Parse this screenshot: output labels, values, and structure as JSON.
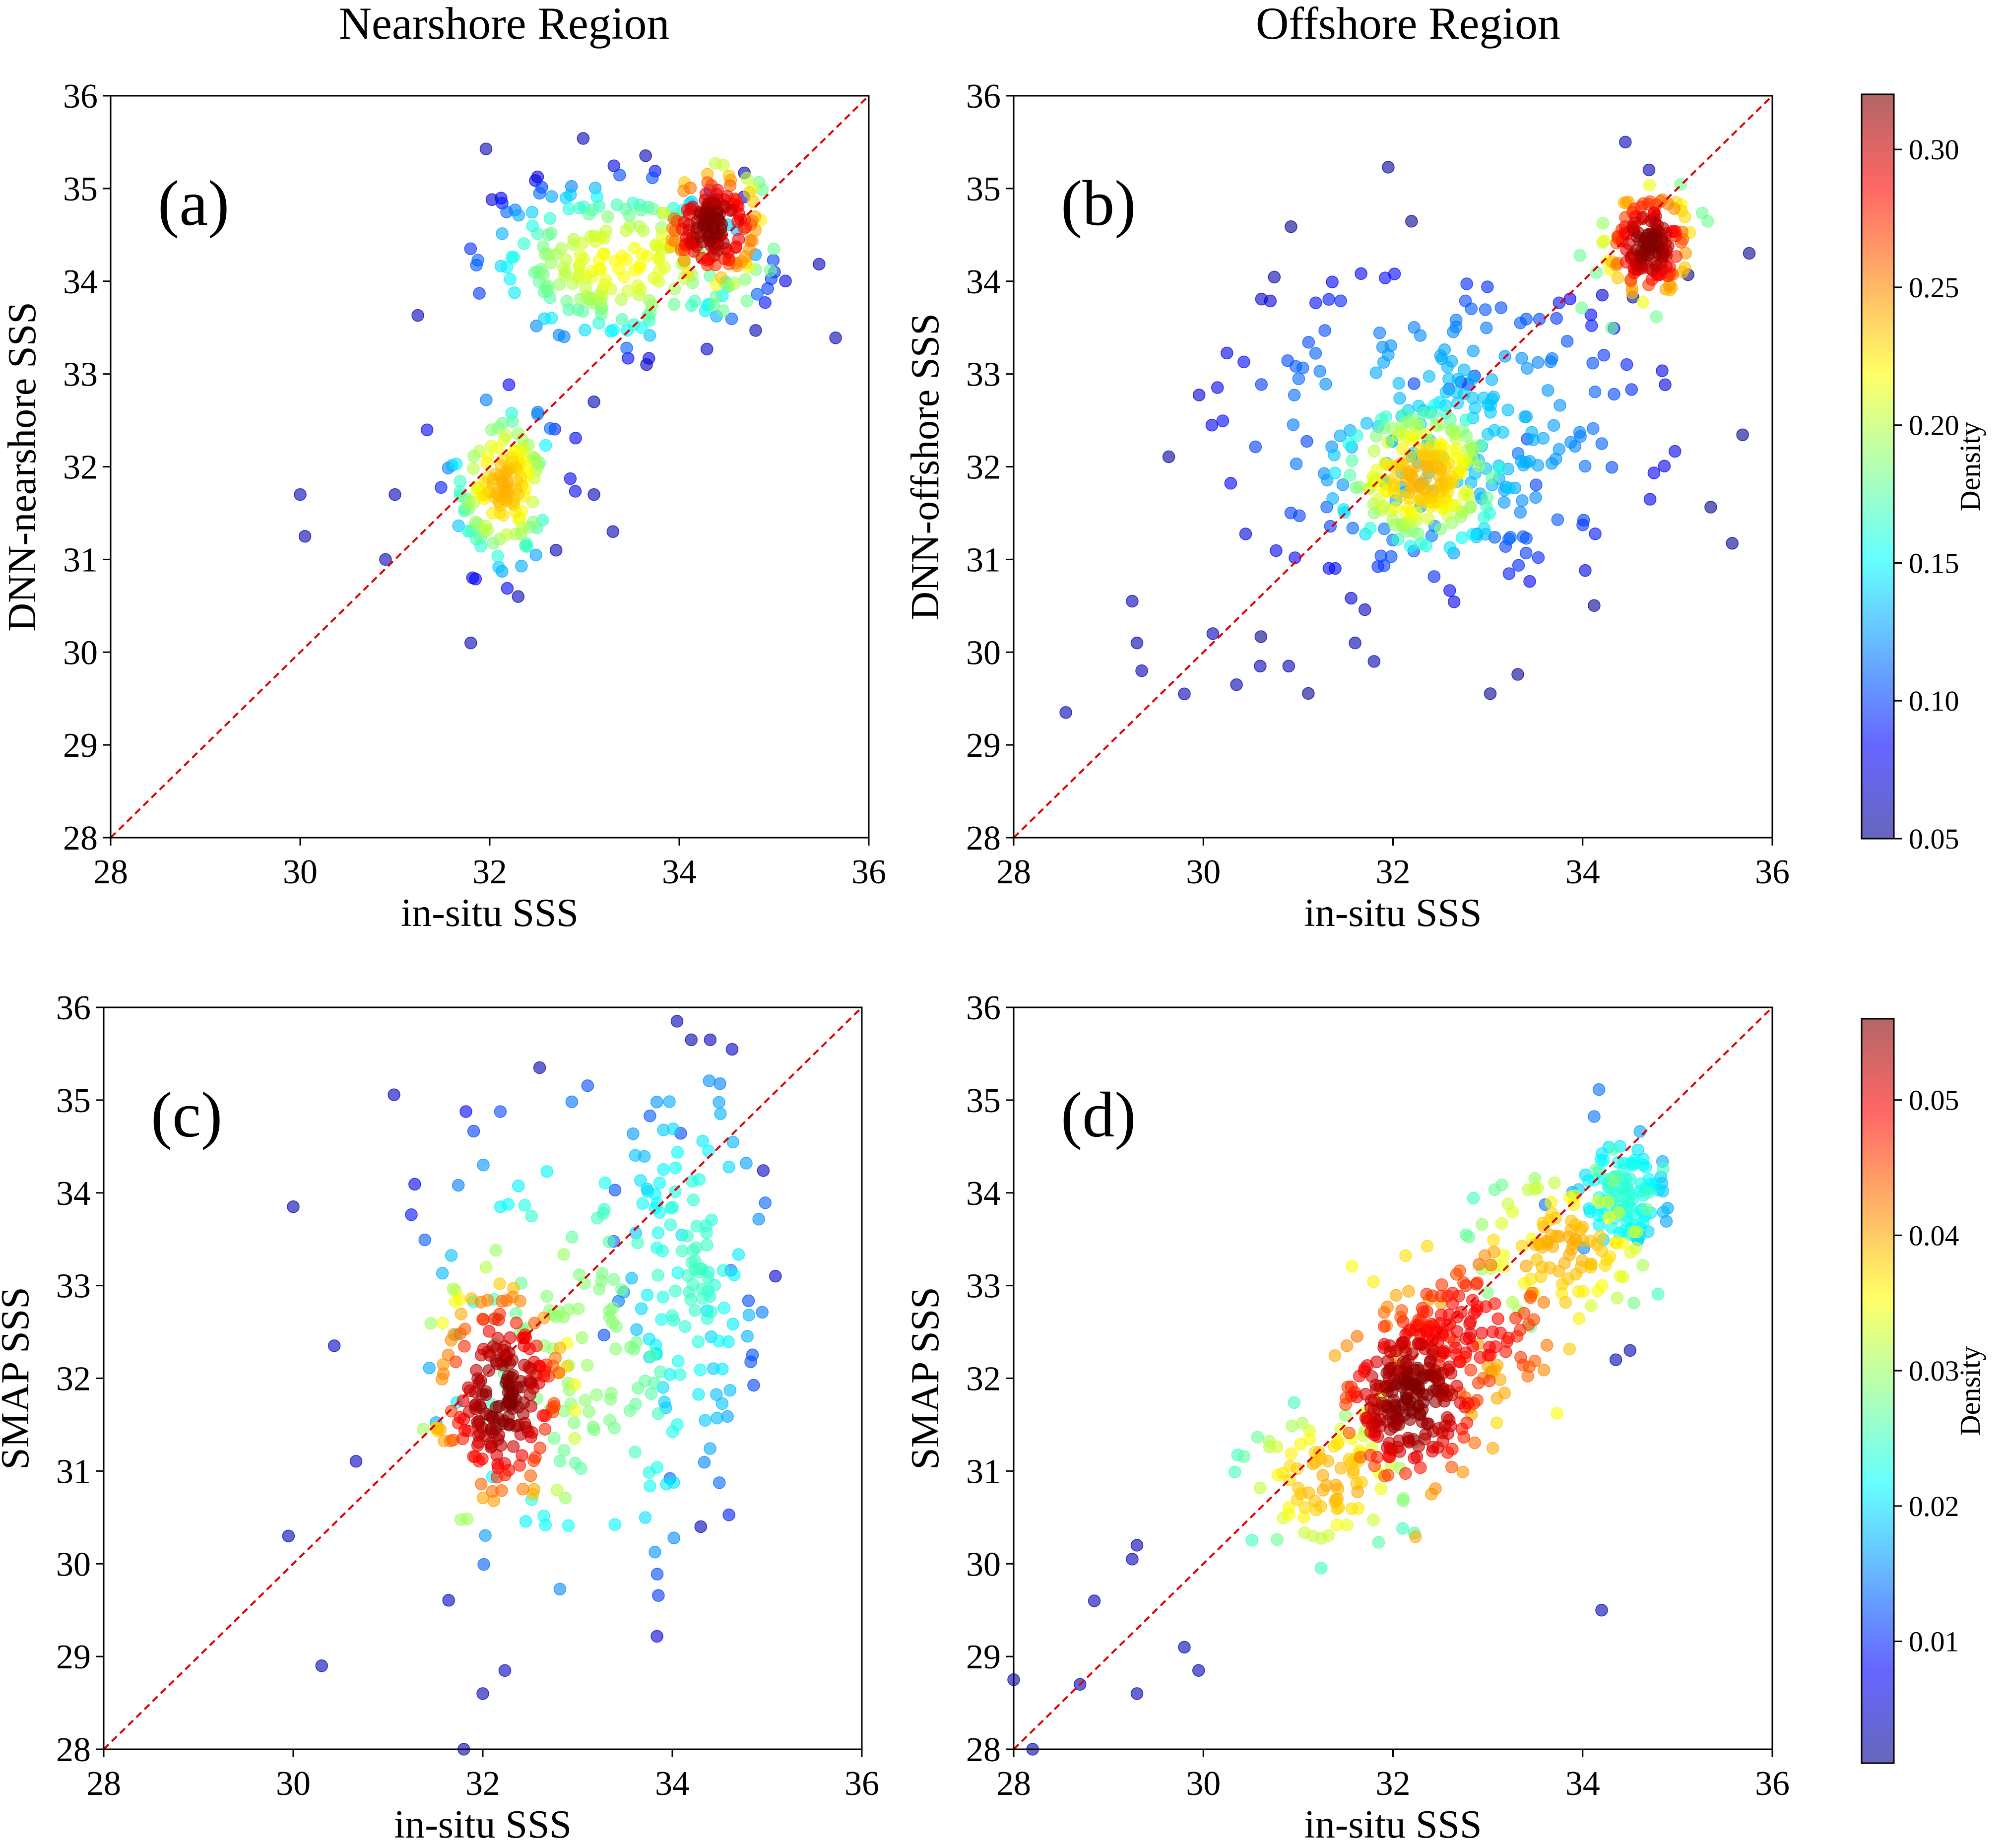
{
  "figure": {
    "column_titles": [
      "Nearshore Region",
      "Offshore Region"
    ]
  },
  "chart_data": [
    {
      "type": "scatter",
      "panel_label": "(a)",
      "xlabel": "in-situ SSS",
      "ylabel": "DNN-nearshore SSS",
      "xlim": [
        28,
        36
      ],
      "ylim": [
        28,
        36
      ],
      "xticks": [
        "28",
        "30",
        "32",
        "34",
        "36"
      ],
      "yticks": [
        "28",
        "29",
        "30",
        "31",
        "32",
        "33",
        "34",
        "35",
        "36"
      ],
      "reference_line": "1:1 line (y = x), red dashed",
      "clusters": [
        {
          "center": [
            34.35,
            34.6
          ],
          "spread": [
            0.25,
            0.3
          ],
          "count": 170,
          "density": [
            0.18,
            0.32
          ]
        },
        {
          "center": [
            33.4,
            34.2
          ],
          "spread": [
            0.75,
            0.45
          ],
          "count": 230,
          "density": [
            0.06,
            0.22
          ]
        },
        {
          "center": [
            32.15,
            31.8
          ],
          "spread": [
            0.28,
            0.45
          ],
          "count": 150,
          "density": [
            0.08,
            0.24
          ]
        }
      ],
      "outliers": [
        [
          30.0,
          31.7
        ],
        [
          30.05,
          31.25
        ],
        [
          30.9,
          31.0
        ],
        [
          31.0,
          31.7
        ],
        [
          31.8,
          30.1
        ],
        [
          32.3,
          30.6
        ],
        [
          32.7,
          31.1
        ],
        [
          33.3,
          31.3
        ],
        [
          33.1,
          32.7
        ],
        [
          33.1,
          31.7
        ]
      ],
      "colorbar": {
        "label": "Density",
        "min": 0.05,
        "max": 0.32,
        "ticks": [
          "0.05",
          "0.10",
          "0.15",
          "0.20",
          "0.25",
          "0.30"
        ]
      }
    },
    {
      "type": "scatter",
      "panel_label": "(b)",
      "xlabel": "in-situ SSS",
      "ylabel": "DNN-offshore SSS",
      "xlim": [
        28,
        36
      ],
      "ylim": [
        28,
        36
      ],
      "xticks": [
        "28",
        "30",
        "32",
        "34",
        "36"
      ],
      "yticks": [
        "28",
        "29",
        "30",
        "31",
        "32",
        "33",
        "34",
        "35",
        "36"
      ],
      "reference_line": "1:1 line (y = x), red dashed",
      "clusters": [
        {
          "center": [
            34.7,
            34.4
          ],
          "spread": [
            0.22,
            0.3
          ],
          "count": 160,
          "density": [
            0.18,
            0.32
          ]
        },
        {
          "center": [
            32.3,
            31.9
          ],
          "spread": [
            0.45,
            0.4
          ],
          "count": 230,
          "density": [
            0.1,
            0.24
          ]
        },
        {
          "center": [
            32.5,
            32.4
          ],
          "spread": [
            1.2,
            0.9
          ],
          "count": 240,
          "density": [
            0.05,
            0.14
          ]
        }
      ],
      "outliers": [
        [
          28.55,
          29.35
        ],
        [
          29.25,
          30.55
        ],
        [
          29.3,
          30.1
        ],
        [
          29.35,
          29.8
        ],
        [
          29.8,
          29.55
        ],
        [
          30.1,
          30.2
        ],
        [
          30.35,
          29.65
        ],
        [
          30.6,
          29.85
        ],
        [
          30.9,
          29.85
        ],
        [
          31.6,
          30.1
        ],
        [
          31.8,
          29.9
        ],
        [
          34.45,
          35.5
        ],
        [
          34.7,
          35.2
        ]
      ],
      "colorbar": {
        "label": "Density",
        "min": 0.05,
        "max": 0.32,
        "ticks": [
          "0.05",
          "0.10",
          "0.15",
          "0.20",
          "0.25",
          "0.30"
        ]
      }
    },
    {
      "type": "scatter",
      "panel_label": "(c)",
      "xlabel": "in-situ SSS",
      "ylabel": "SMAP SSS",
      "xlim": [
        28,
        36
      ],
      "ylim": [
        28,
        36
      ],
      "xticks": [
        "28",
        "30",
        "32",
        "34",
        "36"
      ],
      "yticks": [
        "28",
        "29",
        "30",
        "31",
        "32",
        "33",
        "34",
        "35",
        "36"
      ],
      "reference_line": "1:1 line (y = x), red dashed",
      "clusters": [
        {
          "center": [
            32.2,
            31.8
          ],
          "spread": [
            0.35,
            0.6
          ],
          "count": 230,
          "density": [
            0.03,
            0.056
          ]
        },
        {
          "center": [
            34.2,
            33.2
          ],
          "spread": [
            0.35,
            1.0
          ],
          "count": 110,
          "density": [
            0.012,
            0.025
          ]
        },
        {
          "center": [
            33.0,
            32.3
          ],
          "spread": [
            0.9,
            1.4
          ],
          "count": 160,
          "density": [
            0.004,
            0.03
          ]
        }
      ],
      "outliers": [
        [
          30.0,
          33.85
        ],
        [
          29.95,
          30.3
        ],
        [
          30.3,
          28.9
        ],
        [
          31.8,
          28.0
        ],
        [
          32.0,
          28.6
        ],
        [
          34.3,
          30.4
        ],
        [
          34.05,
          35.85
        ],
        [
          34.4,
          35.65
        ],
        [
          34.2,
          35.65
        ],
        [
          32.6,
          35.35
        ]
      ],
      "colorbar": {
        "label": "Density",
        "min": 0.001,
        "max": 0.056,
        "ticks": [
          "0.01",
          "0.02",
          "0.03",
          "0.04",
          "0.05"
        ]
      }
    },
    {
      "type": "scatter",
      "panel_label": "(d)",
      "xlabel": "in-situ SSS",
      "ylabel": "SMAP SSS",
      "xlim": [
        28,
        36
      ],
      "ylim": [
        28,
        36
      ],
      "xticks": [
        "28",
        "30",
        "32",
        "34",
        "36"
      ],
      "yticks": [
        "28",
        "29",
        "30",
        "31",
        "32",
        "33",
        "34",
        "35",
        "36"
      ],
      "reference_line": "1:1 line (y = x), red dashed",
      "clusters": [
        {
          "center": [
            32.2,
            31.8
          ],
          "spread": [
            0.35,
            0.45
          ],
          "count": 260,
          "density": [
            0.04,
            0.056
          ]
        },
        {
          "center": [
            32.8,
            32.5
          ],
          "spread": [
            0.5,
            0.45
          ],
          "count": 120,
          "density": [
            0.035,
            0.05
          ]
        },
        {
          "center": [
            31.3,
            30.9
          ],
          "spread": [
            0.4,
            0.35
          ],
          "count": 90,
          "density": [
            0.025,
            0.04
          ]
        },
        {
          "center": [
            33.8,
            33.4
          ],
          "spread": [
            0.45,
            0.4
          ],
          "count": 110,
          "density": [
            0.025,
            0.04
          ]
        },
        {
          "center": [
            34.4,
            34.0
          ],
          "spread": [
            0.25,
            0.35
          ],
          "count": 100,
          "density": [
            0.014,
            0.024
          ]
        }
      ],
      "outliers": [
        [
          28.0,
          28.75
        ],
        [
          28.2,
          28.0
        ],
        [
          28.7,
          28.7
        ],
        [
          28.85,
          29.6
        ],
        [
          29.25,
          30.05
        ],
        [
          29.3,
          30.2
        ],
        [
          29.3,
          28.6
        ],
        [
          29.8,
          29.1
        ],
        [
          29.95,
          28.85
        ],
        [
          34.2,
          29.5
        ],
        [
          34.35,
          32.2
        ],
        [
          34.5,
          32.3
        ]
      ],
      "colorbar": {
        "label": "Density",
        "min": 0.001,
        "max": 0.056,
        "ticks": [
          "0.01",
          "0.02",
          "0.03",
          "0.04",
          "0.05"
        ]
      }
    }
  ]
}
